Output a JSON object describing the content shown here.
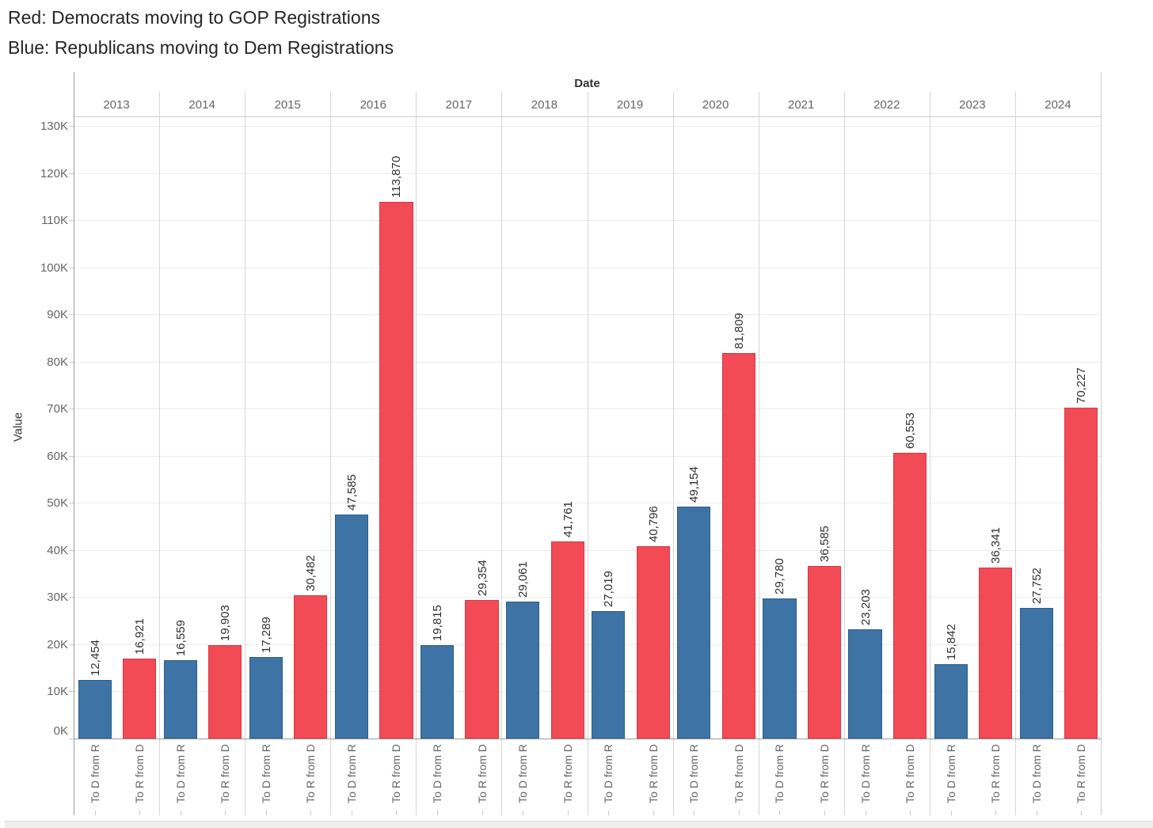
{
  "header": {
    "title_line1": "Red: Democrats moving to GOP Registrations",
    "title_line2": "Blue: Republicans moving to Dem Registrations"
  },
  "chart_data": {
    "type": "bar",
    "top_axis_title": "Date",
    "ylabel": "Value",
    "ylim": [
      0,
      130000
    ],
    "ytick_interval": 10000,
    "ytick_labels": [
      "0K",
      "10K",
      "20K",
      "30K",
      "40K",
      "50K",
      "60K",
      "70K",
      "80K",
      "90K",
      "100K",
      "110K",
      "120K",
      "130K"
    ],
    "categories": [
      "2013",
      "2014",
      "2015",
      "2016",
      "2017",
      "2018",
      "2019",
      "2020",
      "2021",
      "2022",
      "2023",
      "2024"
    ],
    "bar_categories": [
      "To D from R",
      "To R from D"
    ],
    "series": [
      {
        "name": "To D from R",
        "color": "#3E73A5",
        "border_color": "#2D5D87",
        "values": [
          12454,
          16559,
          17289,
          47585,
          19815,
          29061,
          27019,
          49154,
          29780,
          23203,
          15842,
          27752
        ]
      },
      {
        "name": "To R from D",
        "color": "#F24B55",
        "border_color": "#D83842",
        "values": [
          16921,
          19903,
          30482,
          113870,
          29354,
          41761,
          40796,
          81809,
          36585,
          60553,
          36341,
          70227
        ]
      }
    ],
    "value_labels": [
      [
        "12,454",
        "16,559",
        "17,289",
        "47,585",
        "19,815",
        "29,061",
        "27,019",
        "49,154",
        "29,780",
        "23,203",
        "15,842",
        "27,752"
      ],
      [
        "16,921",
        "19,903",
        "30,482",
        "113,870",
        "29,354",
        "41,761",
        "40,796",
        "81,809",
        "36,585",
        "60,553",
        "36,341",
        "70,227"
      ]
    ],
    "grid": true,
    "legend_position": "none"
  }
}
